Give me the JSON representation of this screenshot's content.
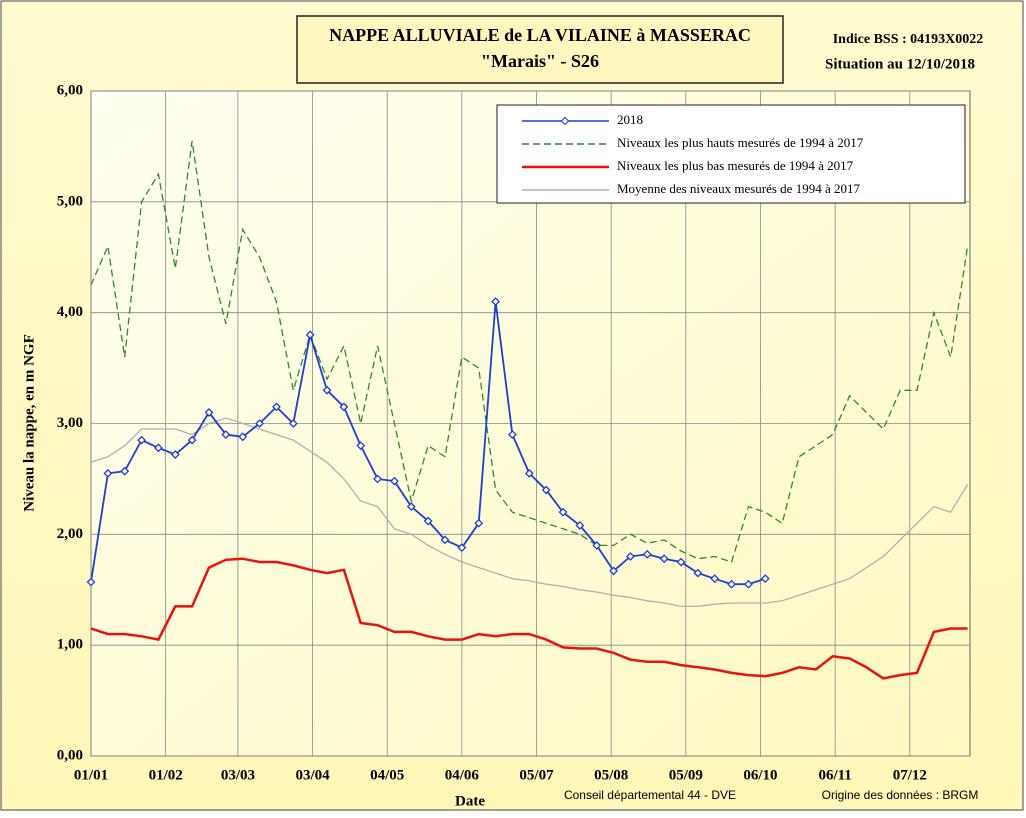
{
  "chart_data": {
    "type": "line",
    "title": "NAPPE ALLUVIALE de LA VILAINE à MASSERAC",
    "subtitle": "\"Marais\" - S26",
    "info": [
      "Indice BSS : 04193X0022",
      "Situation au 12/10/2018"
    ],
    "y_label": "Niveau la nappe, en m NGF",
    "x_label": "Date",
    "footer_left": "Conseil départemental 44 - DVE",
    "footer_right": "Origine des données : BRGM",
    "x": [
      0,
      7,
      14,
      21,
      28,
      35,
      42,
      49,
      56,
      63,
      70,
      77,
      84,
      91,
      98,
      105,
      112,
      119,
      126,
      133,
      140,
      147,
      154,
      161,
      168,
      175,
      182,
      189,
      196,
      203,
      210,
      217,
      224,
      231,
      238,
      245,
      252,
      259,
      266,
      273,
      280,
      287,
      294,
      301,
      308,
      315,
      322,
      329,
      336,
      343,
      350,
      357,
      364
    ],
    "xlim": [
      0,
      365
    ],
    "xticks": [
      {
        "value": 0,
        "label": "01/01"
      },
      {
        "value": 31,
        "label": "01/02"
      },
      {
        "value": 61,
        "label": "03/03"
      },
      {
        "value": 92,
        "label": "03/04"
      },
      {
        "value": 123,
        "label": "04/05"
      },
      {
        "value": 154,
        "label": "04/06"
      },
      {
        "value": 185,
        "label": "05/07"
      },
      {
        "value": 216,
        "label": "05/08"
      },
      {
        "value": 247,
        "label": "05/09"
      },
      {
        "value": 278,
        "label": "06/10"
      },
      {
        "value": 309,
        "label": "06/11"
      },
      {
        "value": 340,
        "label": "07/12"
      }
    ],
    "ylim": [
      0,
      6
    ],
    "yticks": [
      {
        "value": 0,
        "label": "0,00"
      },
      {
        "value": 1,
        "label": "1,00"
      },
      {
        "value": 2,
        "label": "2,00"
      },
      {
        "value": 3,
        "label": "3,00"
      },
      {
        "value": 4,
        "label": "4,00"
      },
      {
        "value": 5,
        "label": "5,00"
      },
      {
        "value": 6,
        "label": "6,00"
      }
    ],
    "grid": true,
    "legend_position": "upper right",
    "series": [
      {
        "name": "2018",
        "color": "#1f3fcf",
        "line_style": "solid",
        "marker": "diamond",
        "values": [
          1.57,
          2.55,
          2.57,
          2.85,
          2.78,
          2.72,
          2.85,
          3.1,
          2.9,
          2.88,
          3.0,
          3.15,
          3.0,
          3.8,
          3.3,
          3.15,
          2.8,
          2.5,
          2.48,
          2.25,
          2.12,
          1.95,
          1.88,
          2.1,
          4.1,
          2.9,
          2.55,
          2.4,
          2.2,
          2.08,
          1.9,
          1.67,
          1.8,
          1.82,
          1.78,
          1.75,
          1.65,
          1.6,
          1.55,
          1.55,
          1.6,
          null,
          null,
          null,
          null,
          null,
          null,
          null,
          null,
          null,
          null,
          null,
          null
        ]
      },
      {
        "name": "Niveaux les plus hauts mesurés de 1994 à 2017",
        "color": "#2e8b2e",
        "line_style": "dashed",
        "marker": "none",
        "values": [
          4.25,
          4.6,
          3.6,
          5.0,
          5.25,
          4.4,
          5.55,
          4.5,
          3.9,
          4.75,
          4.5,
          4.1,
          3.3,
          3.8,
          3.4,
          3.7,
          3.0,
          3.7,
          3.0,
          2.3,
          2.8,
          2.7,
          3.6,
          3.5,
          2.4,
          2.2,
          2.15,
          2.1,
          2.05,
          2.0,
          1.9,
          1.9,
          2.0,
          1.92,
          1.95,
          1.85,
          1.78,
          1.8,
          1.75,
          2.25,
          2.2,
          2.1,
          2.7,
          2.8,
          2.9,
          3.25,
          3.1,
          2.95,
          3.3,
          3.3,
          4.0,
          3.6,
          4.6
        ]
      },
      {
        "name": "Niveaux les plus bas mesurés de 1994 à 2017",
        "color": "#e8140c",
        "line_style": "solid",
        "marker": "none",
        "width": 2.5,
        "values": [
          1.15,
          1.1,
          1.1,
          1.08,
          1.05,
          1.35,
          1.35,
          1.7,
          1.77,
          1.78,
          1.75,
          1.75,
          1.72,
          1.68,
          1.65,
          1.68,
          1.2,
          1.18,
          1.12,
          1.12,
          1.08,
          1.05,
          1.05,
          1.1,
          1.08,
          1.1,
          1.1,
          1.05,
          0.98,
          0.97,
          0.97,
          0.93,
          0.87,
          0.85,
          0.85,
          0.82,
          0.8,
          0.78,
          0.75,
          0.73,
          0.72,
          0.75,
          0.8,
          0.78,
          0.9,
          0.88,
          0.8,
          0.7,
          0.73,
          0.75,
          1.12,
          1.15,
          1.15
        ]
      },
      {
        "name": "Moyenne des niveaux mesurés de 1994 à 2017",
        "color": "#b0b0b0",
        "line_style": "solid",
        "marker": "none",
        "values": [
          2.65,
          2.7,
          2.8,
          2.95,
          2.95,
          2.95,
          2.9,
          3.0,
          3.05,
          3.0,
          2.95,
          2.9,
          2.85,
          2.75,
          2.65,
          2.5,
          2.3,
          2.25,
          2.05,
          2.0,
          1.9,
          1.82,
          1.75,
          1.7,
          1.65,
          1.6,
          1.58,
          1.55,
          1.53,
          1.5,
          1.48,
          1.45,
          1.43,
          1.4,
          1.38,
          1.35,
          1.35,
          1.37,
          1.38,
          1.38,
          1.38,
          1.4,
          1.45,
          1.5,
          1.55,
          1.6,
          1.7,
          1.8,
          1.95,
          2.1,
          2.25,
          2.2,
          2.45
        ]
      }
    ]
  }
}
